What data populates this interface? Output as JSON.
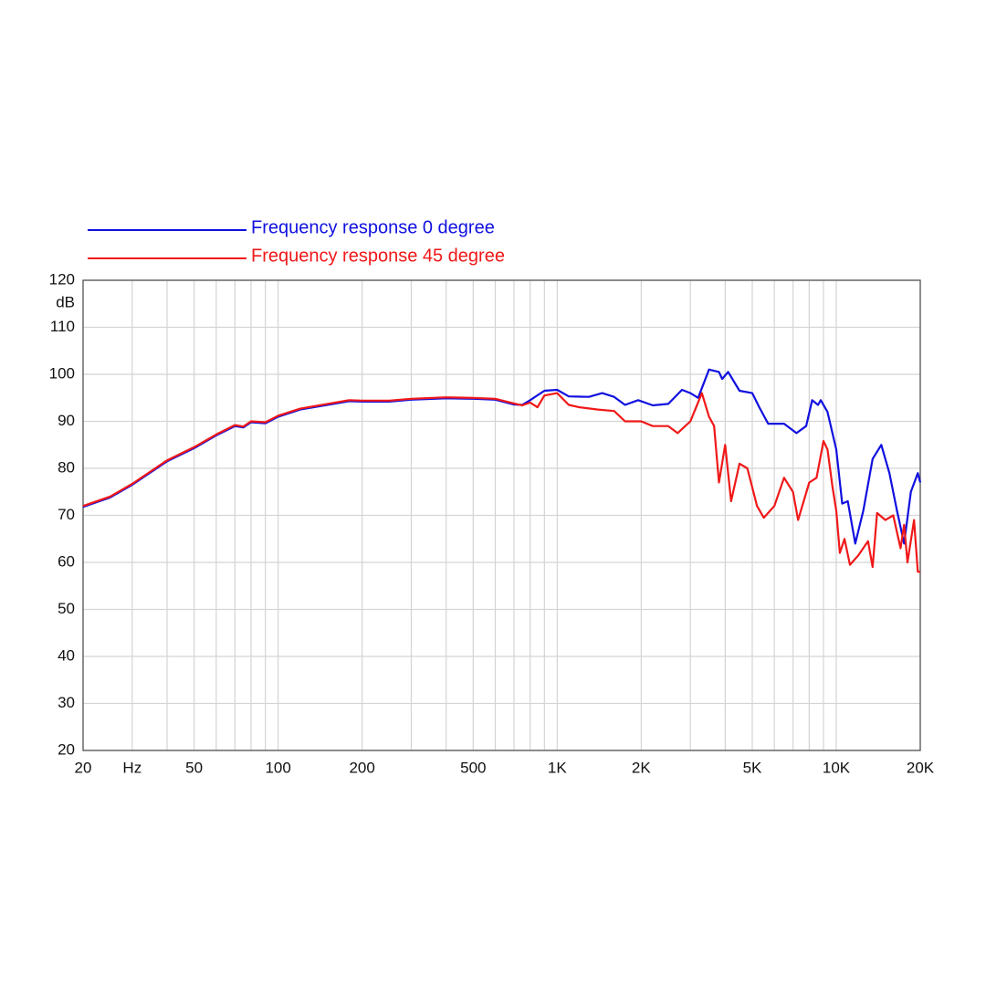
{
  "chart_data": {
    "type": "line",
    "y_label": "dB",
    "x_log": true,
    "xlim": [
      20,
      20000
    ],
    "ylim": [
      20,
      120
    ],
    "yticks": [
      20,
      30,
      40,
      50,
      60,
      70,
      80,
      90,
      100,
      110,
      120
    ],
    "xticks": [
      20,
      {
        "value": 30,
        "label": "Hz"
      },
      50,
      100,
      200,
      500,
      {
        "value": 1000,
        "label": "1K"
      },
      {
        "value": 2000,
        "label": "2K"
      },
      {
        "value": 5000,
        "label": "5K"
      },
      {
        "value": 10000,
        "label": "10K"
      },
      {
        "value": 20000,
        "label": "20K"
      }
    ],
    "x_minor_ticks": [
      40,
      60,
      70,
      80,
      90,
      300,
      400,
      600,
      700,
      800,
      900,
      3000,
      4000,
      6000,
      7000,
      8000,
      9000
    ],
    "grid": true,
    "series": [
      {
        "name": "Frequency response 0 degree",
        "color": "#1010e0",
        "x": [
          20,
          25,
          30,
          40,
          50,
          60,
          70,
          75,
          80,
          90,
          100,
          120,
          150,
          180,
          200,
          250,
          300,
          400,
          500,
          600,
          700,
          750,
          800,
          900,
          1000,
          1100,
          1300,
          1450,
          1600,
          1750,
          1950,
          2200,
          2500,
          2800,
          3000,
          3200,
          3500,
          3800,
          3900,
          4100,
          4500,
          5000,
          5300,
          5700,
          6500,
          7200,
          7800,
          8200,
          8600,
          8800,
          9300,
          10000,
          10500,
          11000,
          11700,
          12500,
          13500,
          14500,
          15500,
          16500,
          17500,
          18500,
          19600,
          20000
        ],
        "values": [
          71.8,
          73.8,
          76.5,
          81.5,
          84.3,
          87,
          89,
          88.7,
          89.8,
          89.6,
          91,
          92.5,
          93.5,
          94.3,
          94.2,
          94.2,
          94.6,
          94.9,
          94.8,
          94.6,
          93.6,
          93.5,
          94.5,
          96.5,
          96.7,
          95.3,
          95.2,
          96,
          95.2,
          93.5,
          94.5,
          93.4,
          93.7,
          96.7,
          96,
          95,
          101,
          100.5,
          99,
          100.5,
          96.5,
          96,
          93,
          89.5,
          89.5,
          87.5,
          89,
          94.5,
          93.5,
          94.5,
          92,
          84,
          72.5,
          73,
          64,
          71,
          82,
          85,
          79,
          71,
          64,
          75,
          79,
          77
        ]
      },
      {
        "name": "Frequency response 45 degree",
        "color": "#f01818",
        "x": [
          20,
          25,
          30,
          40,
          50,
          60,
          70,
          75,
          80,
          90,
          100,
          120,
          150,
          180,
          200,
          250,
          300,
          400,
          500,
          600,
          700,
          750,
          800,
          850,
          900,
          1000,
          1100,
          1200,
          1400,
          1600,
          1750,
          2000,
          2200,
          2500,
          2700,
          3000,
          3300,
          3500,
          3650,
          3800,
          4000,
          4200,
          4500,
          4800,
          5200,
          5500,
          6000,
          6500,
          7000,
          7300,
          8000,
          8500,
          9000,
          9300,
          9700,
          10000,
          10300,
          10700,
          11200,
          12000,
          13000,
          13500,
          14000,
          15000,
          16000,
          17000,
          17500,
          18000,
          19000,
          19600,
          20000
        ],
        "values": [
          72,
          74,
          76.7,
          81.7,
          84.5,
          87.2,
          89.2,
          88.9,
          90,
          89.8,
          91.2,
          92.7,
          93.7,
          94.5,
          94.4,
          94.4,
          94.8,
          95.1,
          95,
          94.8,
          93.8,
          93.4,
          94,
          93,
          95.5,
          96,
          93.5,
          93,
          92.5,
          92.2,
          90,
          90,
          89,
          89,
          87.5,
          90,
          96,
          91,
          89,
          77,
          85,
          73,
          81,
          80,
          72,
          69.5,
          72,
          78,
          75,
          69,
          77,
          78,
          85.8,
          84,
          76,
          71,
          62,
          65,
          59.5,
          61.5,
          64.5,
          59,
          70.5,
          69,
          70,
          63,
          68,
          60,
          69,
          58,
          58
        ]
      }
    ]
  }
}
